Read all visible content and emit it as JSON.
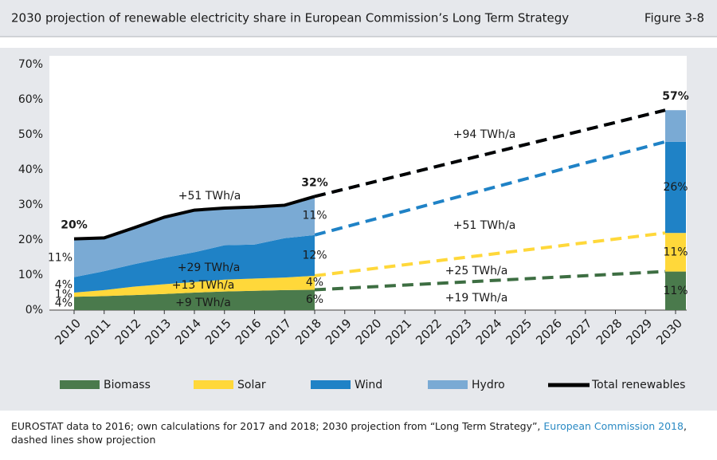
{
  "header": {
    "title": "2030 projection of renewable electricity share in European Commission’s Long Term Strategy",
    "figure": "Figure 3-8"
  },
  "chart_data": {
    "type": "area",
    "categories": [
      "2010",
      "2011",
      "2012",
      "2013",
      "2014",
      "2015",
      "2016",
      "2017",
      "2018",
      "2019",
      "2020",
      "2021",
      "2022",
      "2023",
      "2024",
      "2025",
      "2026",
      "2027",
      "2028",
      "2029",
      "2030"
    ],
    "series": [
      {
        "name": "Biomass",
        "color": "#4a7a4c",
        "values": [
          3.8,
          4.0,
          4.3,
          4.6,
          5.0,
          5.3,
          5.5,
          5.7,
          5.8,
          null,
          null,
          null,
          null,
          null,
          null,
          null,
          null,
          null,
          null,
          null,
          11
        ],
        "value_labels": [
          "4%",
          null,
          null,
          null,
          null,
          null,
          null,
          null,
          "6%",
          null,
          null,
          null,
          null,
          null,
          null,
          null,
          null,
          null,
          null,
          null,
          "11%"
        ]
      },
      {
        "name": "Solar",
        "color": "#ffd83a",
        "values": [
          1.2,
          1.7,
          2.4,
          2.8,
          3.0,
          3.4,
          3.5,
          3.6,
          4,
          null,
          null,
          null,
          null,
          null,
          null,
          null,
          null,
          null,
          null,
          null,
          11
        ],
        "value_labels": [
          "1%",
          null,
          null,
          null,
          null,
          null,
          null,
          null,
          "4%",
          null,
          null,
          null,
          null,
          null,
          null,
          null,
          null,
          null,
          null,
          null,
          "11%"
        ]
      },
      {
        "name": "Wind",
        "color": "#1f82c6",
        "values": [
          4.4,
          5.4,
          6.4,
          7.5,
          8.5,
          9.8,
          9.7,
          11.2,
          11.6,
          null,
          null,
          null,
          null,
          null,
          null,
          null,
          null,
          null,
          null,
          null,
          26
        ],
        "value_labels": [
          "4%",
          null,
          null,
          null,
          null,
          null,
          null,
          null,
          "12%",
          null,
          null,
          null,
          null,
          null,
          null,
          null,
          null,
          null,
          null,
          null,
          "26%"
        ]
      },
      {
        "name": "Hydro",
        "color": "#7aaad4",
        "values": [
          10.9,
          9.5,
          10.4,
          11.6,
          12.0,
          10.6,
          10.7,
          9.4,
          11,
          null,
          null,
          null,
          null,
          null,
          null,
          null,
          null,
          null,
          null,
          null,
          9
        ],
        "value_labels": [
          "11%",
          null,
          null,
          null,
          null,
          null,
          null,
          null,
          "11%",
          null,
          null,
          null,
          null,
          null,
          null,
          null,
          null,
          null,
          null,
          null,
          null
        ]
      }
    ],
    "total": {
      "name": "Total renewables",
      "color": "#000000",
      "values": [
        20.3,
        20.6,
        23.5,
        26.5,
        28.5,
        29.1,
        29.4,
        29.9,
        32.4,
        null,
        null,
        null,
        null,
        null,
        null,
        null,
        null,
        null,
        null,
        null,
        57
      ],
      "value_labels": [
        "20%",
        null,
        null,
        null,
        null,
        null,
        null,
        null,
        "32%",
        null,
        null,
        null,
        null,
        null,
        null,
        null,
        null,
        null,
        null,
        null,
        "57%"
      ]
    },
    "ylim": [
      0,
      70
    ],
    "yticks": [
      {
        "value": 0,
        "label": "0%"
      },
      {
        "value": 10,
        "label": "10%"
      },
      {
        "value": 20,
        "label": "20%"
      },
      {
        "value": 30,
        "label": "30%"
      },
      {
        "value": 40,
        "label": "40%"
      },
      {
        "value": 50,
        "label": "50%"
      },
      {
        "value": 60,
        "label": "60%"
      },
      {
        "value": 70,
        "label": "70%"
      }
    ],
    "annotations": [
      "+51 TWh/a",
      "+29 TWh/a",
      "+13 TWh/a",
      "+9 TWh/a",
      "+94 TWh/a",
      "+51 TWh/a",
      "+25 TWh/a",
      "+19 TWh/a"
    ]
  },
  "source": [
    "EUROSTAT data to 2016; own calculations for 2017 and 2018; 2030 projection from “Long Term Strategy”, ",
    "European Commission 2018",
    ", dashed lines show projection"
  ]
}
